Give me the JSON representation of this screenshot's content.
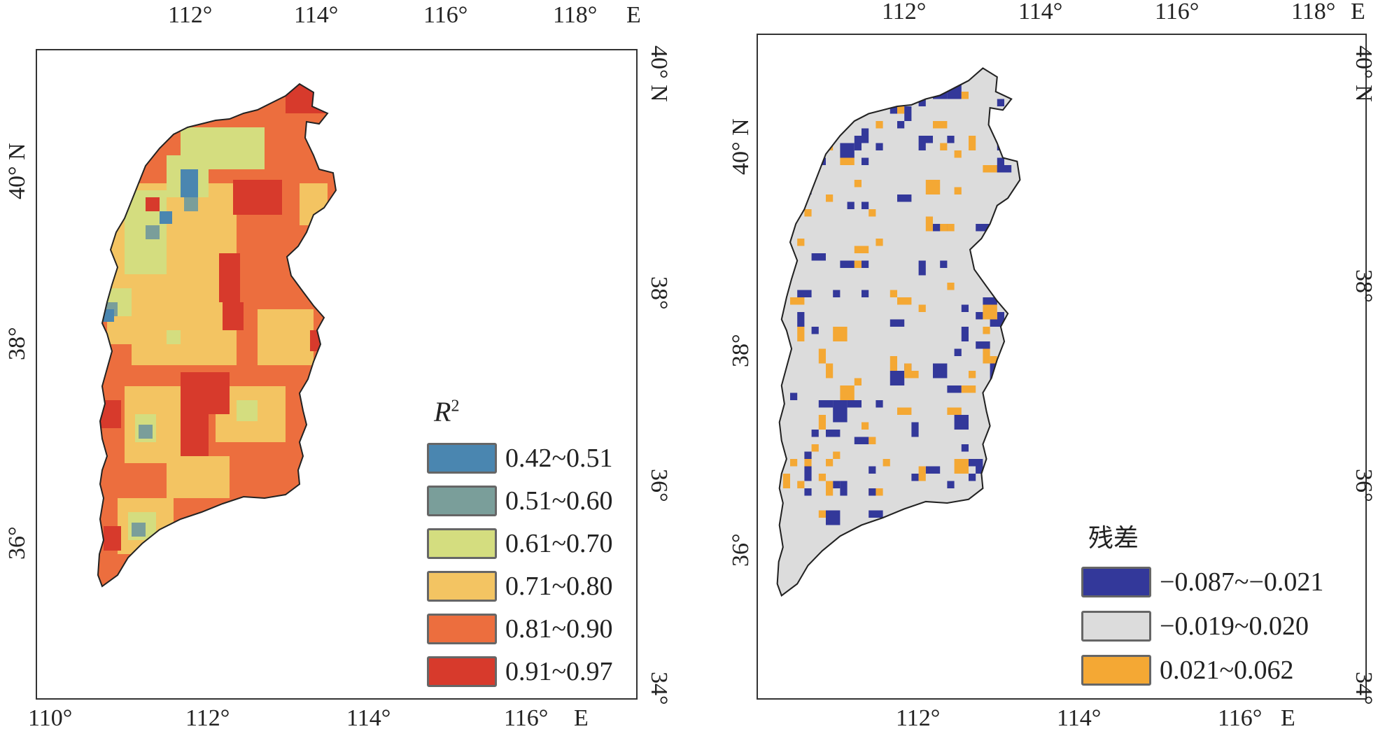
{
  "left_map": {
    "top_ticks": [
      "112°",
      "114°",
      "116°",
      "118°"
    ],
    "top_unit": "E",
    "bottom_ticks": [
      "110°",
      "112°",
      "114°",
      "116°"
    ],
    "bottom_unit": "E",
    "left_ticks": [
      "40° N",
      "38°",
      "36°"
    ],
    "right_ticks": [
      "40° N",
      "38°",
      "36°",
      "34°"
    ],
    "legend": {
      "title": "R",
      "title_sup": "2",
      "items": [
        {
          "label": "0.42~0.51",
          "color": "#4a86b0"
        },
        {
          "label": "0.51~0.60",
          "color": "#7a9e9a"
        },
        {
          "label": "0.61~0.70",
          "color": "#d4dd7f"
        },
        {
          "label": "0.71~0.80",
          "color": "#f3c462"
        },
        {
          "label": "0.81~0.90",
          "color": "#ec6e3e"
        },
        {
          "label": "0.91~0.97",
          "color": "#d73a2c"
        }
      ]
    }
  },
  "right_map": {
    "top_ticks": [
      "112°",
      "114°",
      "116°",
      "118°"
    ],
    "top_unit": "E",
    "bottom_ticks": [
      "112°",
      "114°",
      "116°"
    ],
    "bottom_unit": "E",
    "left_ticks": [
      "40° N",
      "38°",
      "36°"
    ],
    "right_ticks": [
      "40° N",
      "38°",
      "36°",
      "34°"
    ],
    "legend": {
      "title": "残差",
      "items": [
        {
          "label": "−0.087~−0.021",
          "color": "#33389a"
        },
        {
          "label": "−0.019~0.020",
          "color": "#dcdcdc"
        },
        {
          "label": "0.021~0.062",
          "color": "#f4a834"
        }
      ]
    }
  }
}
